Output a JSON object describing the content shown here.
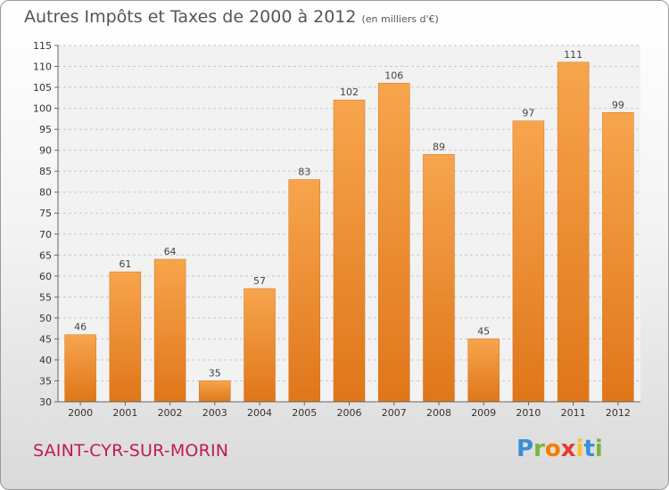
{
  "header": {
    "title": "Autres Impôts et Taxes de 2000 à 2012",
    "unit": "(en milliers d'€)"
  },
  "commune": "SAINT-CYR-SUR-MORIN",
  "logo": {
    "letters": [
      "P",
      "r",
      "o",
      "x",
      "i",
      "t",
      "i"
    ],
    "colors": [
      "#3a8fd6",
      "#7cb342",
      "#f57c00",
      "#e53935",
      "#fbc02d",
      "#3a8fd6",
      "#7cb342"
    ]
  },
  "chart_data": {
    "type": "bar",
    "title": "Autres Impôts et Taxes de 2000 à 2012",
    "categories": [
      "2000",
      "2001",
      "2002",
      "2003",
      "2004",
      "2005",
      "2006",
      "2007",
      "2008",
      "2009",
      "2010",
      "2011",
      "2012"
    ],
    "values": [
      46,
      61,
      64,
      35,
      57,
      83,
      102,
      106,
      89,
      45,
      97,
      111,
      99
    ],
    "ylim": [
      30,
      115
    ],
    "yticks": [
      30,
      35,
      40,
      45,
      50,
      55,
      60,
      65,
      70,
      75,
      80,
      85,
      90,
      95,
      100,
      105,
      110,
      115
    ],
    "grid": true,
    "bar_color": "#f0902e"
  }
}
